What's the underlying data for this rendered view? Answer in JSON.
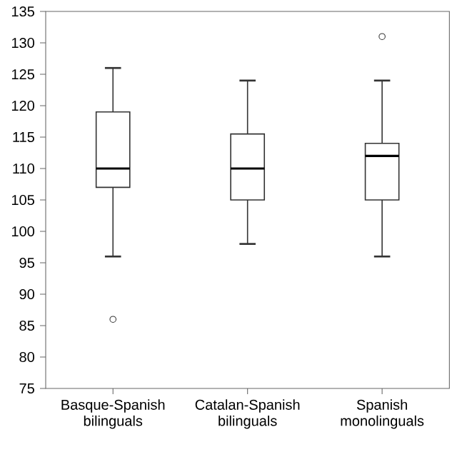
{
  "chart_data": {
    "type": "box",
    "categories": [
      "Basque-Spanish\nbilinguals",
      "Catalan-Spanish\nbilinguals",
      "Spanish\nmonolinguals"
    ],
    "boxes": [
      {
        "low": 96,
        "q1": 107,
        "median": 110,
        "q3": 119,
        "high": 126,
        "outliers": [
          86
        ]
      },
      {
        "low": 98,
        "q1": 105,
        "median": 110,
        "q3": 115.5,
        "high": 124
      },
      {
        "low": 96,
        "q1": 105,
        "median": 112,
        "q3": 114,
        "high": 124,
        "outliers": [
          131
        ]
      }
    ],
    "ylim": [
      75,
      135
    ],
    "yticks": [
      75,
      80,
      85,
      90,
      95,
      100,
      105,
      110,
      115,
      120,
      125,
      130,
      135
    ]
  }
}
